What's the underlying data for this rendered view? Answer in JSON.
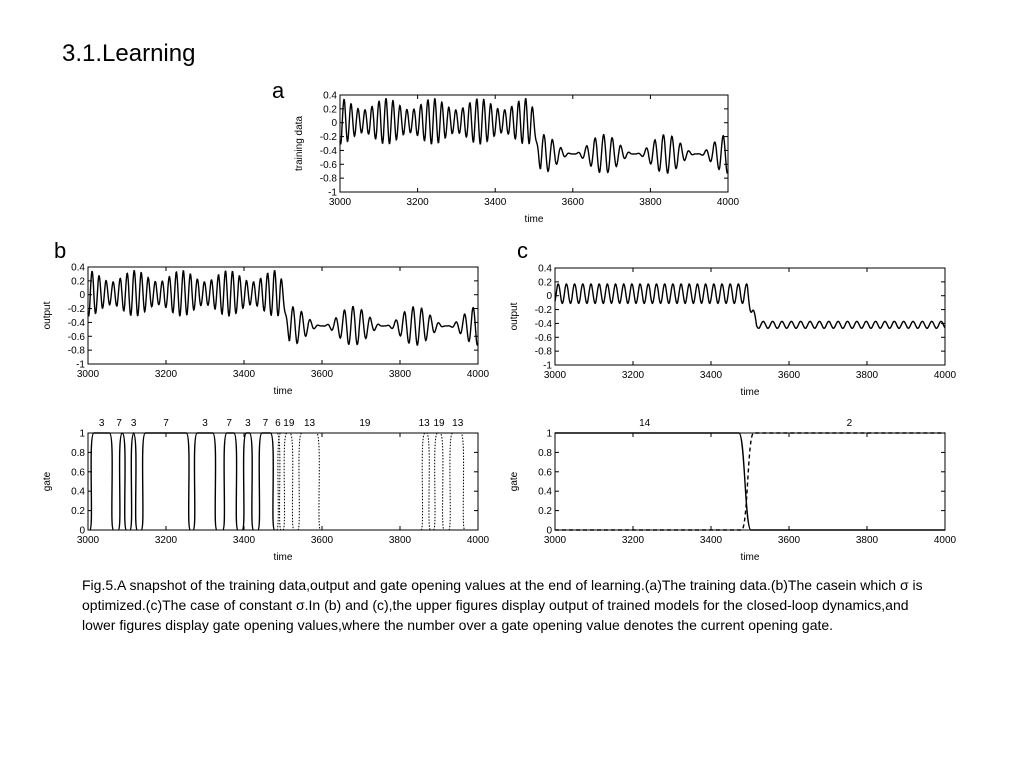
{
  "slide": {
    "title": "3.1.Learning",
    "caption": "Fig.5.A snapshot of the training data,output and gate opening values at the end of learning.(a)The training data.(b)The casein which σ is optimized.(c)The case of constant σ.In (b) and (c),the upper figures display output of trained models for the closed-loop dynamics,and lower figures display gate opening values,where the number over a gate opening value denotes the current opening gate."
  },
  "chart_data": [
    {
      "id": "a",
      "panel_label": "a",
      "type": "line",
      "xlabel": "time",
      "ylabel": "training data",
      "xlim": [
        3000,
        4000
      ],
      "ylim": [
        -1,
        0.4
      ],
      "xticks": [
        3000,
        3200,
        3400,
        3600,
        3800,
        4000
      ],
      "yticks": [
        0.4,
        0.2,
        0,
        -0.2,
        -0.4,
        -0.6,
        -0.8,
        -1
      ],
      "ytick_labels": [
        "0.4",
        "0.2",
        "0",
        "-0.2",
        "-0.4",
        "-0.6",
        "-0.8",
        "-1"
      ],
      "series": [
        {
          "signal": {
            "switch_at": 3505,
            "before": {
              "offset": 0.02,
              "amplitude": 0.33,
              "period": 18,
              "beat_period": 120,
              "beat_depth": 0.25
            },
            "after": {
              "offset": -0.45,
              "amplitude": 0.28,
              "period": 22,
              "beat_period": 160,
              "beat_depth": 0.5
            }
          }
        }
      ]
    },
    {
      "id": "b-output",
      "panel_label": "b",
      "type": "line",
      "xlabel": "time",
      "ylabel": "output",
      "xlim": [
        3000,
        4000
      ],
      "ylim": [
        -1,
        0.4
      ],
      "xticks": [
        3000,
        3200,
        3400,
        3600,
        3800,
        4000
      ],
      "yticks": [
        0.4,
        0.2,
        0,
        -0.2,
        -0.4,
        -0.6,
        -0.8,
        -1
      ],
      "ytick_labels": [
        "0.4",
        "0.2",
        "0",
        "-0.2",
        "-0.4",
        "-0.6",
        "-0.8",
        "-1"
      ],
      "series": [
        {
          "signal": {
            "switch_at": 3505,
            "before": {
              "offset": 0.02,
              "amplitude": 0.33,
              "period": 18,
              "beat_period": 120,
              "beat_depth": 0.25
            },
            "after": {
              "offset": -0.45,
              "amplitude": 0.28,
              "period": 22,
              "beat_period": 160,
              "beat_depth": 0.5
            }
          }
        }
      ]
    },
    {
      "id": "c-output",
      "panel_label": "c",
      "type": "line",
      "xlabel": "time",
      "ylabel": "output",
      "xlim": [
        3000,
        4000
      ],
      "ylim": [
        -1,
        0.4
      ],
      "xticks": [
        3000,
        3200,
        3400,
        3600,
        3800,
        4000
      ],
      "yticks": [
        0.4,
        0.2,
        0,
        -0.2,
        -0.4,
        -0.6,
        -0.8,
        -1
      ],
      "ytick_labels": [
        "0.4",
        "0.2",
        "0",
        "-0.2",
        "-0.4",
        "-0.6",
        "-0.8",
        "-1"
      ],
      "series": [
        {
          "signal": {
            "switch_at": 3505,
            "before": {
              "offset": 0.03,
              "amplitude": 0.14,
              "period": 21,
              "beat_period": 0,
              "beat_depth": 0
            },
            "after": {
              "offset": -0.42,
              "amplitude": 0.05,
              "period": 24,
              "beat_period": 0,
              "beat_depth": 0
            }
          }
        }
      ]
    },
    {
      "id": "b-gate",
      "type": "line",
      "xlabel": "time",
      "ylabel": "gate",
      "xlim": [
        3000,
        4000
      ],
      "ylim": [
        0,
        1
      ],
      "xticks": [
        3000,
        3200,
        3400,
        3600,
        3800,
        4000
      ],
      "yticks": [
        1,
        0.8,
        0.6,
        0.4,
        0.2,
        0
      ],
      "ytick_labels": [
        "1",
        "0.8",
        "0.6",
        "0.4",
        "0.2",
        "0"
      ],
      "gate_labels": [
        {
          "text": "3",
          "x": 3035
        },
        {
          "text": "7",
          "x": 3080
        },
        {
          "text": "3",
          "x": 3117
        },
        {
          "text": "7",
          "x": 3200
        },
        {
          "text": "3",
          "x": 3300
        },
        {
          "text": "7",
          "x": 3362
        },
        {
          "text": "3",
          "x": 3410
        },
        {
          "text": "7",
          "x": 3455
        },
        {
          "text": "6",
          "x": 3487
        },
        {
          "text": "19",
          "x": 3515
        },
        {
          "text": "13",
          "x": 3568
        },
        {
          "text": "19",
          "x": 3710
        },
        {
          "text": "13",
          "x": 3862
        },
        {
          "text": "19",
          "x": 3900
        },
        {
          "text": "13",
          "x": 3948
        }
      ],
      "gate_pulses": [
        {
          "start": 3005,
          "end": 3065,
          "style": "solid"
        },
        {
          "start": 3078,
          "end": 3098,
          "style": "solid"
        },
        {
          "start": 3108,
          "end": 3126,
          "style": "solid"
        },
        {
          "start": 3137,
          "end": 3262,
          "style": "solid"
        },
        {
          "start": 3270,
          "end": 3330,
          "style": "solid"
        },
        {
          "start": 3346,
          "end": 3384,
          "style": "solid"
        },
        {
          "start": 3396,
          "end": 3424,
          "style": "solid"
        },
        {
          "start": 3436,
          "end": 3478,
          "style": "solid"
        },
        {
          "start": 3484,
          "end": 3495,
          "style": "dotted"
        },
        {
          "start": 3500,
          "end": 3528,
          "style": "dotted"
        },
        {
          "start": 3538,
          "end": 3596,
          "style": "dotted"
        },
        {
          "start": 3854,
          "end": 3878,
          "style": "dotted"
        },
        {
          "start": 3886,
          "end": 3913,
          "style": "dotted"
        },
        {
          "start": 3925,
          "end": 3966,
          "style": "dotted"
        }
      ]
    },
    {
      "id": "c-gate",
      "type": "line",
      "xlabel": "time",
      "ylabel": "gate",
      "xlim": [
        3000,
        4000
      ],
      "ylim": [
        0,
        1
      ],
      "xticks": [
        3000,
        3200,
        3400,
        3600,
        3800,
        4000
      ],
      "yticks": [
        1,
        0.8,
        0.6,
        0.4,
        0.2,
        0
      ],
      "ytick_labels": [
        "1",
        "0.8",
        "0.6",
        "0.4",
        "0.2",
        "0"
      ],
      "gate_labels": [
        {
          "text": "14",
          "x": 3230
        },
        {
          "text": "2",
          "x": 3755
        }
      ],
      "gate_steps": [
        {
          "from": 1,
          "to": 0,
          "at": 3487,
          "style": "solid"
        },
        {
          "from": 0,
          "to": 1,
          "at": 3494,
          "style": "dashed"
        }
      ]
    }
  ]
}
